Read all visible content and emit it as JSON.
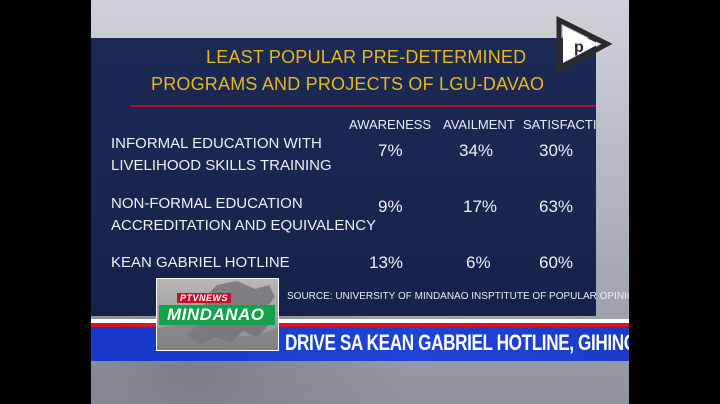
{
  "slide": {
    "title_line1": "LEAST POPULAR PRE-DETERMINED",
    "title_line2": "PROGRAMS AND PROJECTS OF LGU-DAVAO",
    "columns": [
      "AWARENESS",
      "AVAILMENT",
      "SATISFACTION"
    ],
    "rows": [
      {
        "label_line1": "INFORMAL EDUCATION WITH",
        "label_line2": "LIVELIHOOD SKILLS TRAINING",
        "awareness": "7%",
        "availment": "34%",
        "satisfaction": "30%"
      },
      {
        "label_line1": "NON-FORMAL EDUCATION",
        "label_line2": "ACCREDITATION AND EQUIVALENCY",
        "awareness": "9%",
        "availment": "17%",
        "satisfaction": "63%"
      },
      {
        "label_line1": "KEAN GABRIEL HOTLINE",
        "label_line2": "",
        "awareness": "13%",
        "availment": "6%",
        "satisfaction": "60%"
      }
    ],
    "source": "SOURCE: UNIVERSITY OF MINDANAO INSPTITUTE OF POPULAR OPINION"
  },
  "badge": {
    "news_label": "PTVNEWS",
    "region": "MINDANAO"
  },
  "ticker": {
    "headline": "DRIVE SA KEAN GABRIEL HOTLINE, GIHINGUSGAN"
  },
  "colors": {
    "panel": "#1b2a55",
    "title": "#e8b71a",
    "rule": "#b5121b",
    "ticker_blue": "#1d44d8",
    "ticker_red": "#d7141f",
    "badge_green": "#12a24a"
  },
  "icons": {
    "channel_logo": "ptv-logo-icon"
  }
}
